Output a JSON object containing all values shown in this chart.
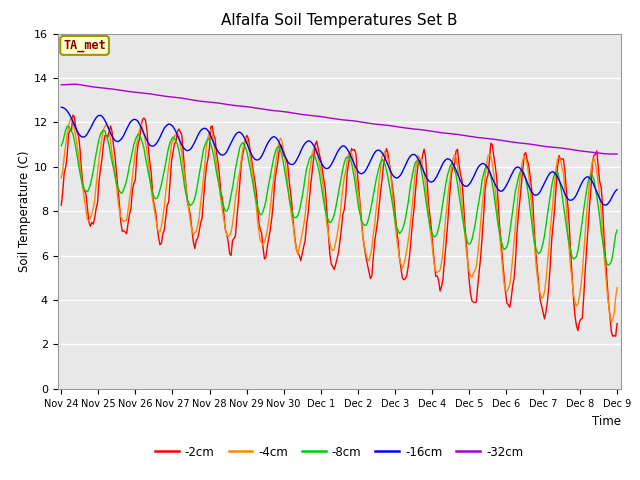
{
  "title": "Alfalfa Soil Temperatures Set B",
  "xlabel": "Time",
  "ylabel": "Soil Temperature (C)",
  "ylim": [
    0,
    16
  ],
  "yticks": [
    0,
    2,
    4,
    6,
    8,
    10,
    12,
    14,
    16
  ],
  "bg_color": "#e8e8e8",
  "annotation_text": "TA_met",
  "annotation_color": "#880000",
  "annotation_bg": "#ffffcc",
  "annotation_border": "#999900",
  "legend_labels": [
    "-2cm",
    "-4cm",
    "-8cm",
    "-16cm",
    "-32cm"
  ],
  "line_colors": [
    "#ff0000",
    "#ff8800",
    "#00cc00",
    "#0000ff",
    "#aa00cc"
  ],
  "line_width": 1.0,
  "x_labels": [
    "Nov 24",
    "Nov 25",
    "Nov 26",
    "Nov 27",
    "Nov 28",
    "Nov 29",
    "Nov 30",
    "Dec 1",
    "Dec 2",
    "Dec 3",
    "Dec 4",
    "Dec 5",
    "Dec 6",
    "Dec 7",
    "Dec 8",
    "Dec 9"
  ],
  "n_points": 384
}
